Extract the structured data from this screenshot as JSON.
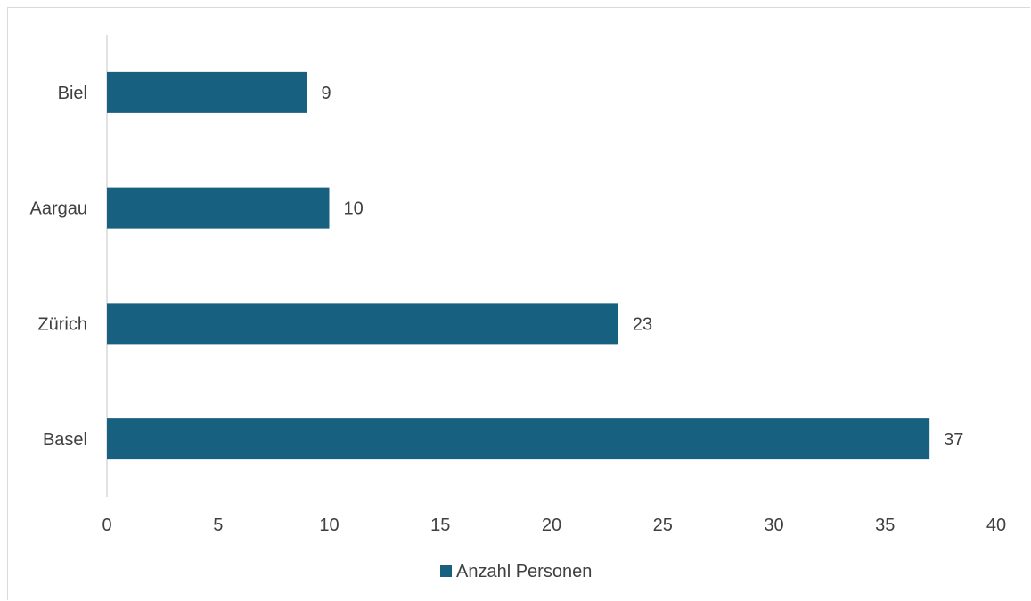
{
  "chart_data": {
    "type": "bar",
    "orientation": "horizontal",
    "categories": [
      "Biel",
      "Aargau",
      "Zürich",
      "Basel"
    ],
    "series": [
      {
        "name": "Anzahl Personen",
        "values": [
          9,
          10,
          23,
          37
        ],
        "color": "#17607f"
      }
    ],
    "xlim": [
      0,
      40
    ],
    "xticks": [
      "0",
      "5",
      "10",
      "15",
      "20",
      "25",
      "30",
      "35",
      "40"
    ],
    "data_labels": [
      "9",
      "10",
      "23",
      "37"
    ],
    "legend_position": "bottom",
    "grid": false,
    "title": "",
    "xlabel": "",
    "ylabel": ""
  }
}
